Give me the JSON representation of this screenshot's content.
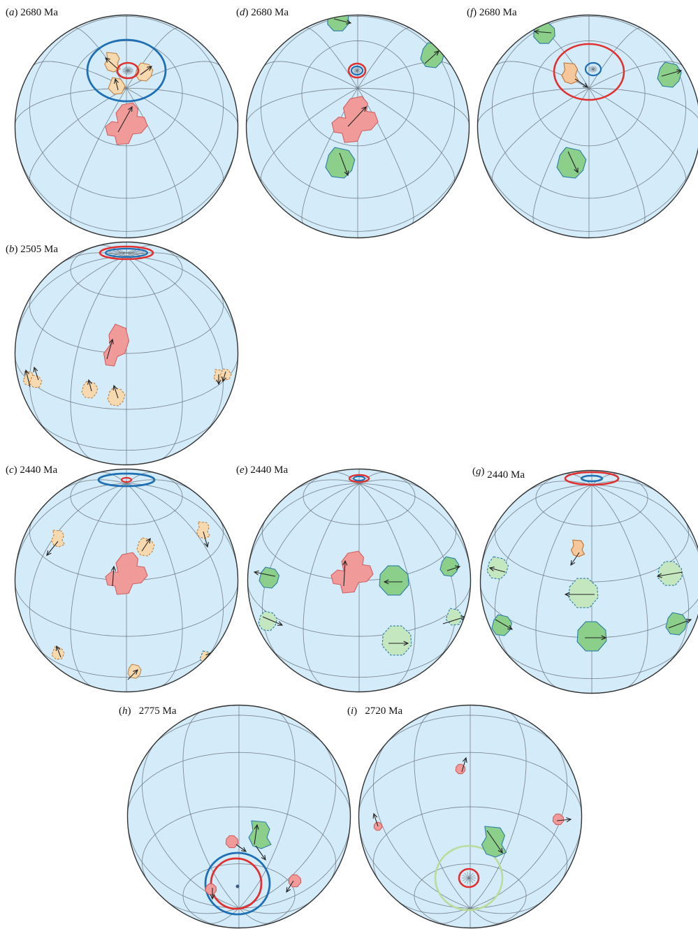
{
  "colors": {
    "ocean": "#d4ecfa",
    "grid": "#707a82",
    "outline": "#333333",
    "red": "#e03030",
    "blue": "#1f6fb4",
    "light_green": "#b9dc9b",
    "fill_pink": "#f19a9a",
    "fill_orange": "#f6c79a",
    "fill_tan": "#f7d9b0",
    "fill_green": "#8ccf8a",
    "fill_pale_green": "#c5e7c0"
  },
  "panels": [
    {
      "id": "a",
      "letter": "a",
      "age": "2680 Ma"
    },
    {
      "id": "d",
      "letter": "d",
      "age": "2680 Ma"
    },
    {
      "id": "f",
      "letter": "f",
      "age": "2680 Ma"
    },
    {
      "id": "b",
      "letter": "b",
      "age": "2505 Ma"
    },
    {
      "id": "c",
      "letter": "c",
      "age": "2440 Ma"
    },
    {
      "id": "e",
      "letter": "e",
      "age": "2440 Ma"
    },
    {
      "id": "g",
      "letter": "g",
      "age": "2440 Ma"
    },
    {
      "id": "h",
      "letter": "h",
      "age": "2775 Ma"
    },
    {
      "id": "i",
      "letter": "i",
      "age": "2720 Ma"
    }
  ]
}
